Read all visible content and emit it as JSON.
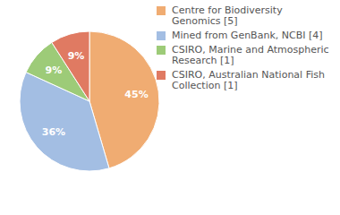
{
  "chart_data": {
    "type": "pie",
    "categories": [
      "Centre for Biodiversity Genomics [5]",
      "Mined from GenBank, NCBI [4]",
      "CSIRO, Marine and Atmospheric Research [1]",
      "CSIRO, Australian National Fish Collection [1]"
    ],
    "values": [
      45,
      36,
      9,
      9
    ],
    "value_labels": [
      "45%",
      "36%",
      "9%",
      "9%"
    ],
    "colors": [
      "#f0ac72",
      "#a3bee3",
      "#9dcb78",
      "#e07a62"
    ],
    "data_labels": true,
    "legend": "right"
  }
}
